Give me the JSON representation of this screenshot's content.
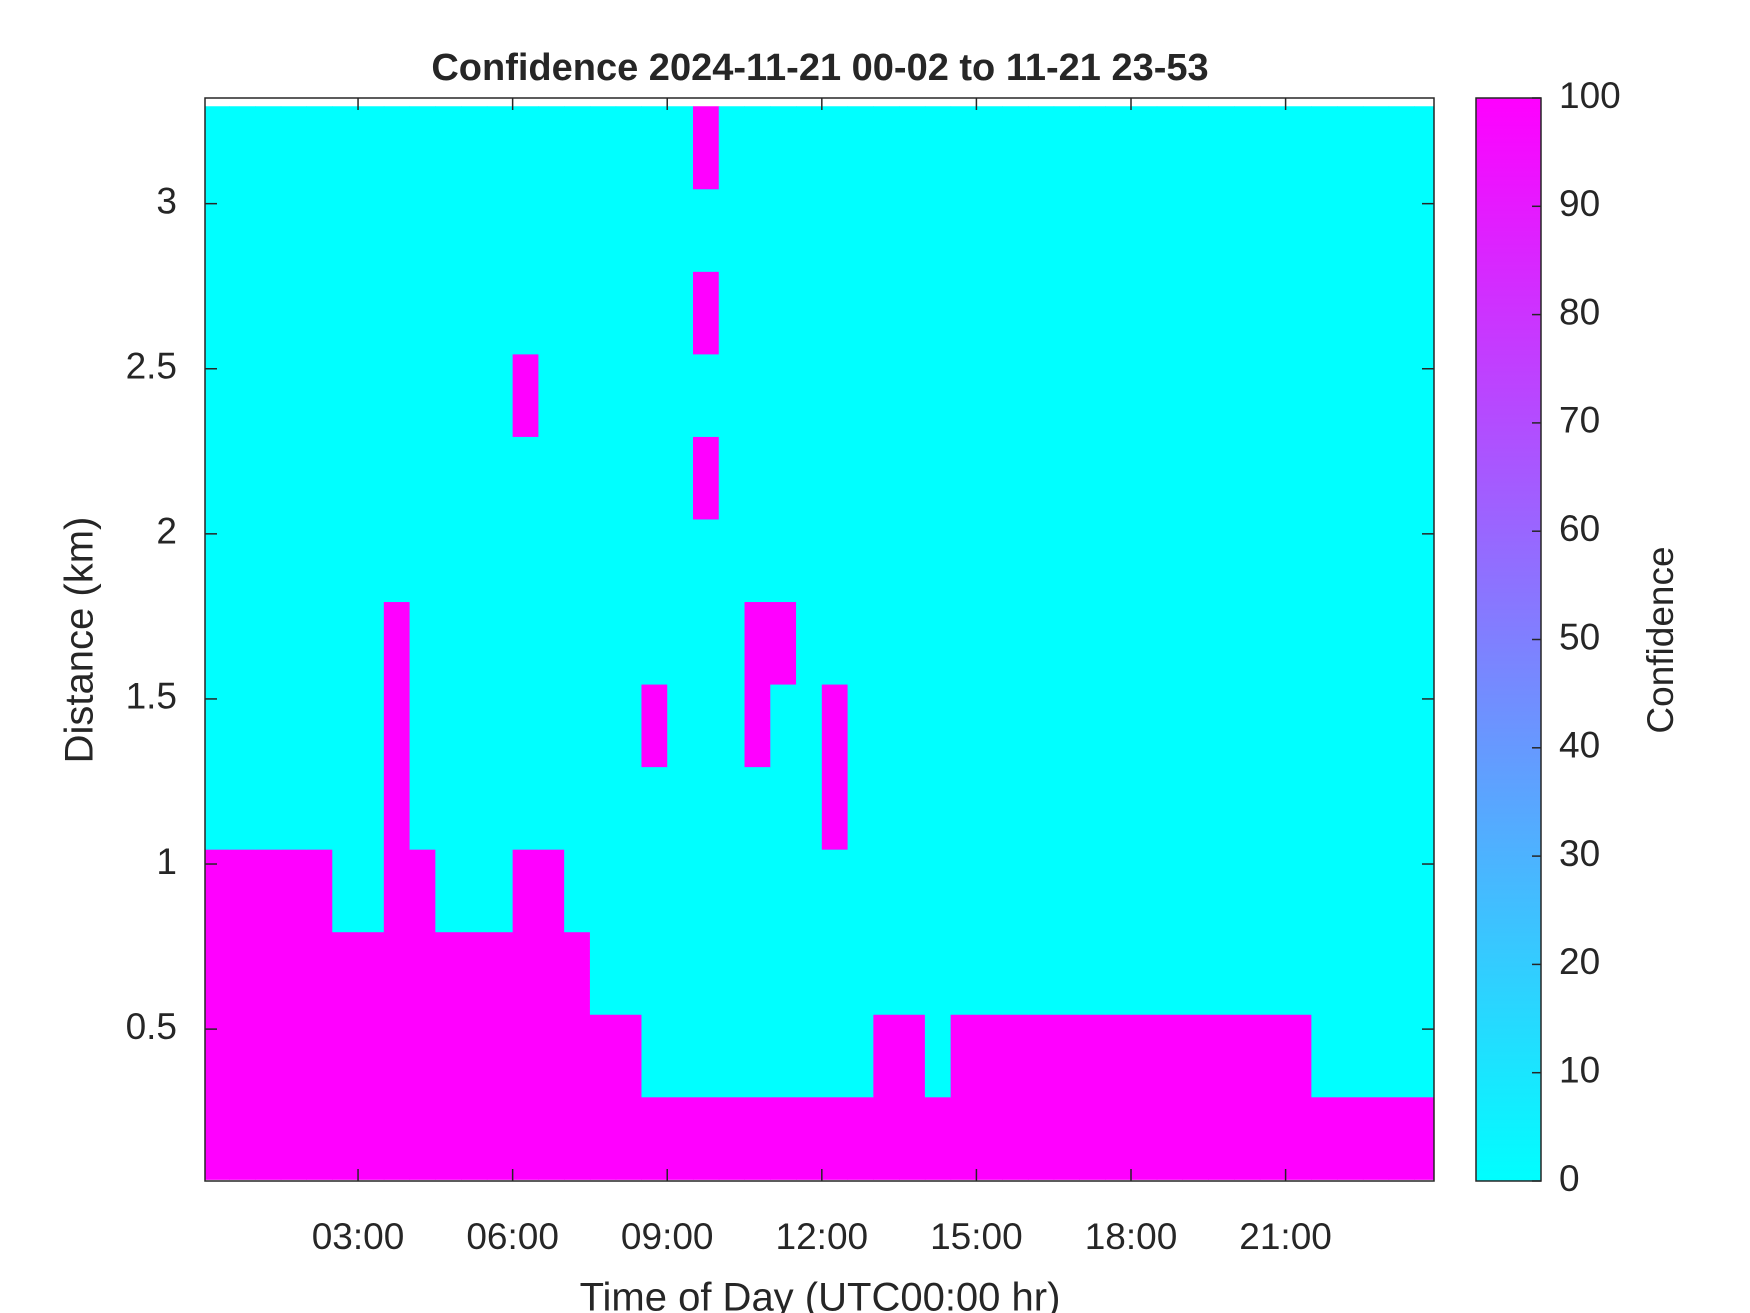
{
  "chart_data": {
    "type": "heatmap",
    "title": "Confidence 2024-11-21 00-02 to 11-21 23-53",
    "x_label": "Time of Day (UTC00:00 hr)",
    "y_label": "Distance (km)",
    "colorbar_label": "Confidence",
    "colormap": [
      "#00ffff",
      "#ff00ff"
    ],
    "clim": [
      0,
      100
    ],
    "cticks": [
      0,
      10,
      20,
      30,
      40,
      50,
      60,
      70,
      80,
      90,
      100
    ],
    "xlim": [
      0.03,
      23.88
    ],
    "xticks": [
      {
        "value": 3,
        "label": "03:00"
      },
      {
        "value": 6,
        "label": "06:00"
      },
      {
        "value": 9,
        "label": "09:00"
      },
      {
        "value": 12,
        "label": "12:00"
      },
      {
        "value": 15,
        "label": "15:00"
      },
      {
        "value": 18,
        "label": "18:00"
      },
      {
        "value": 21,
        "label": "21:00"
      }
    ],
    "ylim": [
      0.04,
      3.32
    ],
    "yticks": [
      0.5,
      1,
      1.5,
      2,
      2.5,
      3
    ],
    "x": [
      0.25,
      0.75,
      1.25,
      1.75,
      2.25,
      2.75,
      3.25,
      3.75,
      4.25,
      4.75,
      5.25,
      5.75,
      6.25,
      6.75,
      7.25,
      7.75,
      8.25,
      8.75,
      9.25,
      9.75,
      10.25,
      10.75,
      11.25,
      11.75,
      12.25,
      12.75,
      13.25,
      13.75,
      14.25,
      14.75,
      15.25,
      15.75,
      16.25,
      16.75,
      17.25,
      17.75,
      18.25,
      18.75,
      19.25,
      19.75,
      20.25,
      20.75,
      21.25,
      21.75,
      22.25,
      22.75,
      23.25,
      23.75
    ],
    "y": [
      0.17,
      0.42,
      0.67,
      0.92,
      1.17,
      1.42,
      1.67,
      1.92,
      2.17,
      2.42,
      2.67,
      2.92,
      3.17
    ],
    "z": [
      [
        100,
        100,
        100,
        100,
        100,
        100,
        100,
        100,
        100,
        100,
        100,
        100,
        100,
        100,
        100,
        100,
        100,
        100,
        100,
        100,
        100,
        100,
        100,
        100,
        100,
        100,
        100,
        100,
        100,
        100,
        100,
        100,
        100,
        100,
        100,
        100,
        100,
        100,
        100,
        100,
        100,
        100,
        100,
        100,
        100,
        100,
        100,
        100
      ],
      [
        100,
        100,
        100,
        100,
        100,
        100,
        100,
        100,
        100,
        100,
        100,
        100,
        100,
        100,
        100,
        100,
        100,
        0,
        0,
        0,
        0,
        0,
        0,
        0,
        0,
        0,
        100,
        100,
        0,
        100,
        100,
        100,
        100,
        100,
        100,
        100,
        100,
        100,
        100,
        100,
        100,
        100,
        100,
        0,
        0,
        0,
        0,
        0
      ],
      [
        100,
        100,
        100,
        100,
        100,
        100,
        100,
        100,
        100,
        100,
        100,
        100,
        100,
        100,
        100,
        0,
        0,
        0,
        0,
        0,
        0,
        0,
        0,
        0,
        0,
        0,
        0,
        0,
        0,
        0,
        0,
        0,
        0,
        0,
        0,
        0,
        0,
        0,
        0,
        0,
        0,
        0,
        0,
        0,
        0,
        0,
        0,
        0
      ],
      [
        100,
        100,
        100,
        100,
        100,
        0,
        0,
        100,
        100,
        0,
        0,
        0,
        100,
        100,
        0,
        0,
        0,
        0,
        0,
        0,
        0,
        0,
        0,
        0,
        0,
        0,
        0,
        0,
        0,
        0,
        0,
        0,
        0,
        0,
        0,
        0,
        0,
        0,
        0,
        0,
        0,
        0,
        0,
        0,
        0,
        0,
        0,
        0
      ],
      [
        0,
        0,
        0,
        0,
        0,
        0,
        0,
        100,
        0,
        0,
        0,
        0,
        0,
        0,
        0,
        0,
        0,
        0,
        0,
        0,
        0,
        0,
        0,
        0,
        100,
        0,
        0,
        0,
        0,
        0,
        0,
        0,
        0,
        0,
        0,
        0,
        0,
        0,
        0,
        0,
        0,
        0,
        0,
        0,
        0,
        0,
        0,
        0
      ],
      [
        0,
        0,
        0,
        0,
        0,
        0,
        0,
        100,
        0,
        0,
        0,
        0,
        0,
        0,
        0,
        0,
        0,
        100,
        0,
        0,
        0,
        100,
        0,
        0,
        100,
        0,
        0,
        0,
        0,
        0,
        0,
        0,
        0,
        0,
        0,
        0,
        0,
        0,
        0,
        0,
        0,
        0,
        0,
        0,
        0,
        0,
        0,
        0
      ],
      [
        0,
        0,
        0,
        0,
        0,
        0,
        0,
        100,
        0,
        0,
        0,
        0,
        0,
        0,
        0,
        0,
        0,
        0,
        0,
        0,
        0,
        100,
        100,
        0,
        0,
        0,
        0,
        0,
        0,
        0,
        0,
        0,
        0,
        0,
        0,
        0,
        0,
        0,
        0,
        0,
        0,
        0,
        0,
        0,
        0,
        0,
        0,
        0
      ],
      [
        0,
        0,
        0,
        0,
        0,
        0,
        0,
        0,
        0,
        0,
        0,
        0,
        0,
        0,
        0,
        0,
        0,
        0,
        0,
        0,
        0,
        0,
        0,
        0,
        0,
        0,
        0,
        0,
        0,
        0,
        0,
        0,
        0,
        0,
        0,
        0,
        0,
        0,
        0,
        0,
        0,
        0,
        0,
        0,
        0,
        0,
        0,
        0
      ],
      [
        0,
        0,
        0,
        0,
        0,
        0,
        0,
        0,
        0,
        0,
        0,
        0,
        0,
        0,
        0,
        0,
        0,
        0,
        0,
        100,
        0,
        0,
        0,
        0,
        0,
        0,
        0,
        0,
        0,
        0,
        0,
        0,
        0,
        0,
        0,
        0,
        0,
        0,
        0,
        0,
        0,
        0,
        0,
        0,
        0,
        0,
        0,
        0
      ],
      [
        0,
        0,
        0,
        0,
        0,
        0,
        0,
        0,
        0,
        0,
        0,
        0,
        100,
        0,
        0,
        0,
        0,
        0,
        0,
        0,
        0,
        0,
        0,
        0,
        0,
        0,
        0,
        0,
        0,
        0,
        0,
        0,
        0,
        0,
        0,
        0,
        0,
        0,
        0,
        0,
        0,
        0,
        0,
        0,
        0,
        0,
        0,
        0
      ],
      [
        0,
        0,
        0,
        0,
        0,
        0,
        0,
        0,
        0,
        0,
        0,
        0,
        0,
        0,
        0,
        0,
        0,
        0,
        0,
        100,
        0,
        0,
        0,
        0,
        0,
        0,
        0,
        0,
        0,
        0,
        0,
        0,
        0,
        0,
        0,
        0,
        0,
        0,
        0,
        0,
        0,
        0,
        0,
        0,
        0,
        0,
        0,
        0
      ],
      [
        0,
        0,
        0,
        0,
        0,
        0,
        0,
        0,
        0,
        0,
        0,
        0,
        0,
        0,
        0,
        0,
        0,
        0,
        0,
        0,
        0,
        0,
        0,
        0,
        0,
        0,
        0,
        0,
        0,
        0,
        0,
        0,
        0,
        0,
        0,
        0,
        0,
        0,
        0,
        0,
        0,
        0,
        0,
        0,
        0,
        0,
        0,
        0
      ],
      [
        0,
        0,
        0,
        0,
        0,
        0,
        0,
        0,
        0,
        0,
        0,
        0,
        0,
        0,
        0,
        0,
        0,
        0,
        0,
        100,
        0,
        0,
        0,
        0,
        0,
        0,
        0,
        0,
        0,
        0,
        0,
        0,
        0,
        0,
        0,
        0,
        0,
        0,
        0,
        0,
        0,
        0,
        0,
        0,
        0,
        0,
        0,
        0
      ]
    ]
  }
}
